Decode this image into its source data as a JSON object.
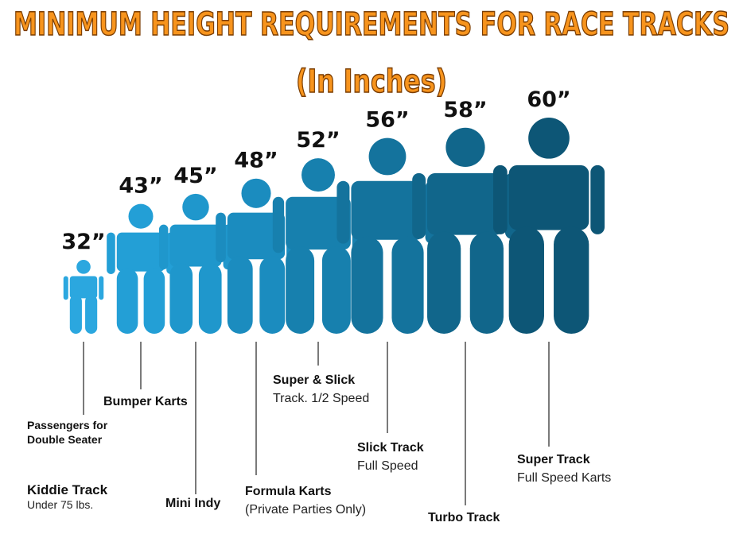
{
  "chart_data": {
    "type": "pictograph",
    "title": "MINIMUM HEIGHT REQUIREMENTS FOR RACE TRACKS",
    "subtitle": "(In Inches)",
    "categories": [
      "Passengers for Double Seater",
      "Bumper Karts",
      "Mini Indy",
      "Formula Karts",
      "Super & Slick",
      "Slick Track",
      "Turbo Track",
      "Super Track"
    ],
    "descriptions": [
      null,
      null,
      null,
      "(Private Parties Only)",
      "Track. 1/2 Speed",
      "Full Speed",
      null,
      "Full Speed Karts"
    ],
    "values": [
      32,
      43,
      45,
      48,
      52,
      56,
      58,
      60
    ],
    "value_labels": [
      "32”",
      "43”",
      "45”",
      "48”",
      "52”",
      "56”",
      "58”",
      "60”"
    ],
    "colors": [
      "#2ba7df",
      "#239fd6",
      "#1f97cc",
      "#1b8cbf",
      "#1780ae",
      "#14739d",
      "#11668b",
      "#0d5676"
    ],
    "annotations": [
      "Kiddie Track",
      "Under 75 lbs."
    ]
  }
}
